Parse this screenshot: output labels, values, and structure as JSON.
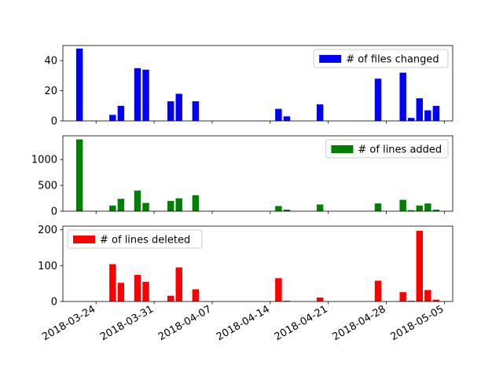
{
  "chart_data": {
    "type": "bar",
    "x_dates": [
      "2018-03-22",
      "2018-03-26",
      "2018-03-27",
      "2018-03-29",
      "2018-03-30",
      "2018-04-02",
      "2018-04-03",
      "2018-04-05",
      "2018-04-15",
      "2018-04-16",
      "2018-04-20",
      "2018-04-27",
      "2018-04-30",
      "2018-05-01",
      "2018-05-02",
      "2018-05-03",
      "2018-05-04"
    ],
    "x_ticks": [
      "2018-03-24",
      "2018-03-31",
      "2018-04-07",
      "2018-04-14",
      "2018-04-21",
      "2018-04-28",
      "2018-05-05"
    ],
    "panels": [
      {
        "legend": "# of files changed",
        "legend_loc": "upper right",
        "color": "#0000ff",
        "ylim": [
          0,
          50
        ],
        "yticks": [
          "0",
          "20",
          "40"
        ],
        "ytick_values": [
          0,
          20,
          40
        ],
        "values": [
          48,
          4,
          10,
          35,
          34,
          13,
          18,
          13,
          8,
          3,
          11,
          28,
          32,
          2,
          15,
          7,
          10
        ]
      },
      {
        "legend": "# of lines added",
        "legend_loc": "upper right",
        "color": "#008000",
        "ylim": [
          0,
          1460
        ],
        "yticks": [
          "0",
          "500",
          "1000"
        ],
        "ytick_values": [
          0,
          500,
          1000
        ],
        "values": [
          1390,
          110,
          240,
          400,
          160,
          200,
          250,
          310,
          100,
          30,
          130,
          150,
          220,
          20,
          110,
          150,
          30
        ]
      },
      {
        "legend": "# of lines deleted",
        "legend_loc": "upper left",
        "color": "#ff0000",
        "ylim": [
          0,
          210
        ],
        "yticks": [
          "0",
          "100",
          "200"
        ],
        "ytick_values": [
          0,
          100,
          200
        ],
        "values": [
          0,
          104,
          52,
          74,
          55,
          16,
          95,
          34,
          65,
          2,
          11,
          58,
          26,
          2,
          197,
          32,
          5
        ]
      }
    ]
  }
}
